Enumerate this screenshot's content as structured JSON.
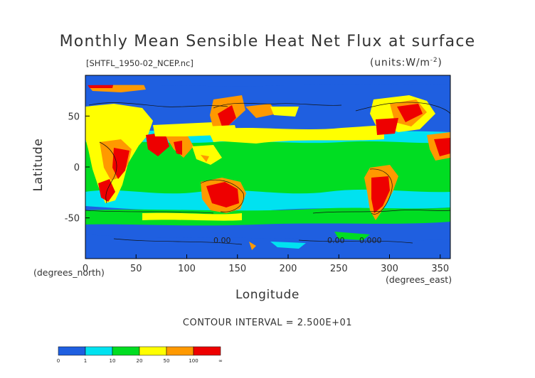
{
  "map": {
    "title": "Monthly Mean Sensible Heat Net Flux at surface",
    "file_label": "[SHTFL_1950-02_NCEP.nc]",
    "units_label": "(units:W/m^-2)",
    "x_axis": {
      "label": "Longitude",
      "unit_label": "(degrees_east)",
      "ticks": [
        0,
        50,
        100,
        150,
        200,
        250,
        300,
        350
      ],
      "range": [
        0,
        360
      ]
    },
    "y_axis": {
      "label": "Latitude",
      "unit_label": "(degrees_north)",
      "ticks": [
        50,
        0,
        -50
      ],
      "range": [
        -90,
        90
      ]
    },
    "contour_labels": [
      "0.00",
      "0.00",
      "0.000"
    ],
    "contour_interval": "CONTOUR INTERVAL = 2.500E+01"
  },
  "colorbar": {
    "segments": [
      {
        "color": "#1f5fe0"
      },
      {
        "color": "#00e2f0"
      },
      {
        "color": "#00dd22"
      },
      {
        "color": "#ffff00"
      },
      {
        "color": "#ff9900"
      },
      {
        "color": "#ee0000"
      }
    ],
    "labels": [
      "0",
      "1",
      "10",
      "20",
      "50",
      "100",
      "∞"
    ]
  }
}
